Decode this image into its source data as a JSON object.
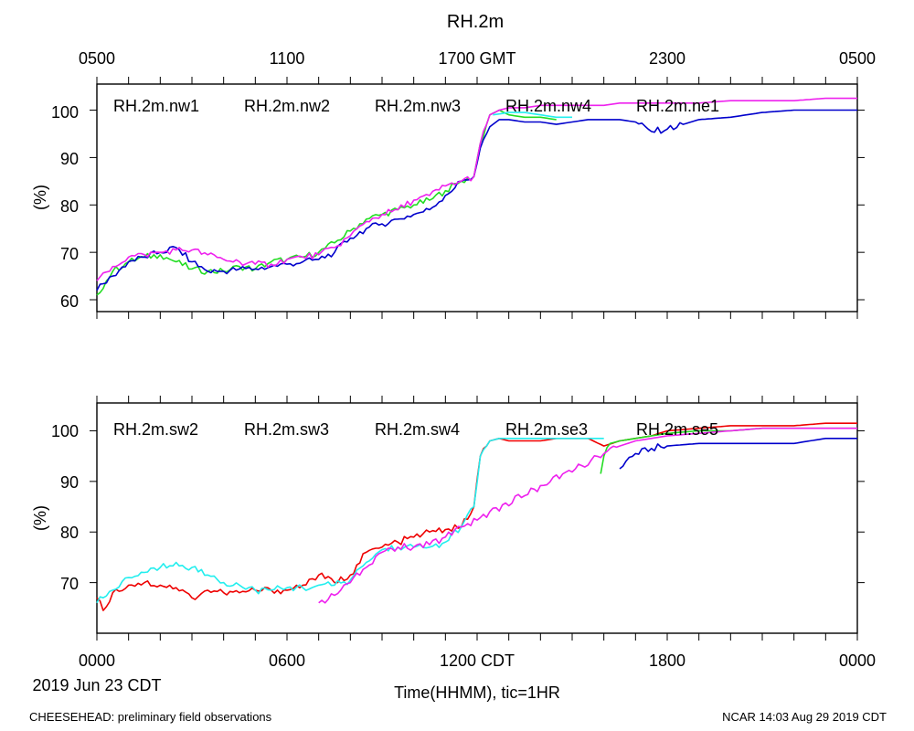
{
  "page_title": "RH.2m",
  "footer": {
    "left": "CHEESEHEAD: preliminary field observations",
    "right": "NCAR 14:03 Aug 29 2019 CDT"
  },
  "x_axis": {
    "top_ticks": [
      "0500",
      "1100",
      "1700 GMT",
      "2300",
      "0500"
    ],
    "bottom_ticks": [
      "0000",
      "0600",
      "1200 CDT",
      "1800",
      "0000"
    ],
    "date_label": "2019 Jun 23 CDT",
    "label": "Time(HHMM), tic=1HR",
    "range_hours": [
      0,
      24
    ]
  },
  "colors": {
    "red": "#ee0000",
    "green": "#22dd22",
    "blue": "#0000cc",
    "cyan": "#22eeee",
    "magenta": "#ee22ee"
  },
  "chart_data": [
    {
      "type": "line",
      "title": "RH.2m",
      "ylabel": "(%)",
      "ylim": [
        57.5,
        105.5
      ],
      "yticks": [
        "60",
        "70",
        "80",
        "90",
        "100"
      ],
      "x": [
        0,
        0.5,
        1,
        1.5,
        2,
        2.5,
        3,
        3.5,
        4,
        4.5,
        5,
        5.5,
        6,
        6.5,
        7,
        7.5,
        8,
        8.5,
        9,
        9.5,
        10,
        10.5,
        11,
        11.5,
        11.9,
        12.1,
        12.4,
        12.7,
        13,
        13.5,
        14,
        14.5,
        15,
        15.5,
        16,
        16.5,
        17,
        17.5,
        18,
        19,
        20,
        21,
        22,
        23,
        24
      ],
      "series": [
        {
          "name": "RH.2m.nw1",
          "color": "red",
          "x": [],
          "values": []
        },
        {
          "name": "RH.2m.nw2",
          "color": "green",
          "values": [
            61,
            66,
            68,
            69,
            69.5,
            68,
            66.5,
            66,
            66,
            67,
            66.5,
            68,
            68.5,
            69,
            70,
            72,
            74.5,
            77,
            78,
            79,
            80,
            81,
            83,
            85,
            86,
            93,
            99,
            100,
            99,
            98.5,
            98.5,
            98,
            null,
            null,
            null,
            null,
            null,
            null,
            null,
            null,
            null,
            null,
            null,
            null,
            null
          ]
        },
        {
          "name": "RH.2m.nw3",
          "color": "blue",
          "values": [
            62,
            65,
            68,
            69,
            70,
            71,
            68,
            66,
            66,
            66.5,
            66.5,
            67,
            67.5,
            68,
            68.5,
            70,
            73,
            75,
            76,
            77,
            78,
            79,
            82,
            85,
            86,
            92,
            96.5,
            98,
            98,
            97.5,
            97.5,
            97,
            97.5,
            98,
            98,
            98,
            97.5,
            95.5,
            96,
            98,
            98.5,
            99.5,
            100,
            100,
            100
          ]
        },
        {
          "name": "RH.2m.nw4",
          "color": "cyan",
          "x": [
            12.5,
            13,
            13.5,
            14,
            14.5,
            15
          ],
          "values": [
            99,
            99.5,
            99.5,
            99,
            98.5,
            98.5
          ]
        },
        {
          "name": "RH.2m.ne1",
          "color": "magenta",
          "values": [
            64,
            67,
            69,
            69.5,
            70,
            70.5,
            70.5,
            69.5,
            68.5,
            68,
            67.5,
            67.5,
            68.5,
            69,
            69.5,
            71,
            73.5,
            76.5,
            78,
            79,
            81,
            82,
            84,
            85,
            86,
            93,
            99,
            100,
            100.5,
            100.5,
            101,
            101,
            101,
            101,
            101,
            101.5,
            101.5,
            101.5,
            101.5,
            101.5,
            102,
            102,
            102,
            102.5,
            102.5
          ]
        }
      ]
    },
    {
      "type": "line",
      "ylabel": "(%)",
      "ylim": [
        60,
        105.5
      ],
      "yticks": [
        "70",
        "80",
        "90",
        "100"
      ],
      "series": [
        {
          "name": "RH.2m.sw2",
          "color": "red",
          "x": [
            0,
            0.2,
            0.5,
            1,
            1.5,
            2,
            2.5,
            3,
            3.5,
            4,
            4.5,
            5,
            5.5,
            6,
            6.5,
            7,
            7.5,
            8,
            8.5,
            9,
            9.5,
            10,
            10.5,
            11,
            11.5,
            11.9,
            12.1,
            12.4,
            12.7,
            13,
            13.5,
            14,
            14.5,
            15,
            15.5,
            16,
            16.5,
            17,
            17.5,
            18,
            19,
            20,
            21,
            22,
            23,
            24
          ],
          "values": [
            67,
            64.5,
            68,
            69.5,
            70,
            69.5,
            69,
            67,
            68.5,
            68,
            68,
            68.5,
            68.5,
            68.5,
            69.5,
            71.5,
            70,
            71.5,
            76,
            77,
            78,
            79,
            80,
            80.5,
            81,
            85,
            95,
            98,
            98.5,
            98,
            98,
            98,
            98.5,
            98.5,
            98.5,
            97,
            98,
            98.5,
            99,
            100,
            100.5,
            101,
            101,
            101,
            101.5,
            101.5
          ]
        },
        {
          "name": "RH.2m.sw3",
          "color": "green",
          "x": [
            15.9,
            16,
            16.2,
            16.5,
            17,
            17.5,
            18,
            19,
            20,
            21,
            22,
            23,
            24
          ],
          "values": [
            91.5,
            95,
            97.5,
            98,
            98.5,
            99,
            99.5,
            100,
            100,
            100.5,
            100.5,
            100.5,
            100.5
          ]
        },
        {
          "name": "RH.2m.sw4",
          "color": "blue",
          "x": [
            16.5,
            16.7,
            17,
            17.5,
            18,
            19,
            20,
            21,
            22,
            23,
            24
          ],
          "values": [
            92.5,
            94,
            95.5,
            96.5,
            97,
            97.5,
            97.5,
            97.5,
            97.5,
            98.5,
            98.5
          ]
        },
        {
          "name": "RH.2m.se3",
          "color": "cyan",
          "x": [
            0,
            0.5,
            1,
            1.5,
            2,
            2.5,
            3,
            3.5,
            4,
            4.5,
            5,
            5.5,
            6,
            6.5,
            7,
            7.5,
            8,
            8.5,
            9,
            9.5,
            10,
            10.5,
            11,
            11.5,
            11.9,
            12.1,
            12.4,
            12.7,
            13,
            13.5,
            14,
            14.5,
            15,
            15.5,
            16,
            16.5,
            17,
            17.5,
            18,
            19,
            20,
            21,
            22,
            23,
            24
          ],
          "values": [
            66,
            68.5,
            71,
            72,
            73,
            74,
            73,
            71.5,
            70,
            69.5,
            68.5,
            68.5,
            69,
            69,
            69.5,
            69.5,
            70.5,
            74,
            76.5,
            77,
            77,
            77,
            78,
            81,
            85,
            95,
            98,
            98.5,
            98.5,
            98.5,
            98.5,
            98.5,
            98.5,
            98.5,
            98.5,
            null,
            null,
            null,
            null,
            null,
            null,
            null,
            null,
            null,
            null
          ]
        },
        {
          "name": "RH.2m.se5",
          "color": "magenta",
          "x": [
            7,
            7.5,
            8,
            8.5,
            9,
            9.5,
            10,
            10.5,
            11,
            11.3,
            11.5,
            16.5,
            17,
            17.5,
            18,
            19,
            20,
            21,
            22,
            23,
            24
          ],
          "values": [
            66,
            67.5,
            70,
            73,
            76,
            77,
            77,
            77.5,
            79,
            80.5,
            81,
            97,
            98,
            98.5,
            99,
            99.5,
            100,
            100.5,
            100.5,
            100.5,
            100.5
          ]
        }
      ]
    }
  ]
}
